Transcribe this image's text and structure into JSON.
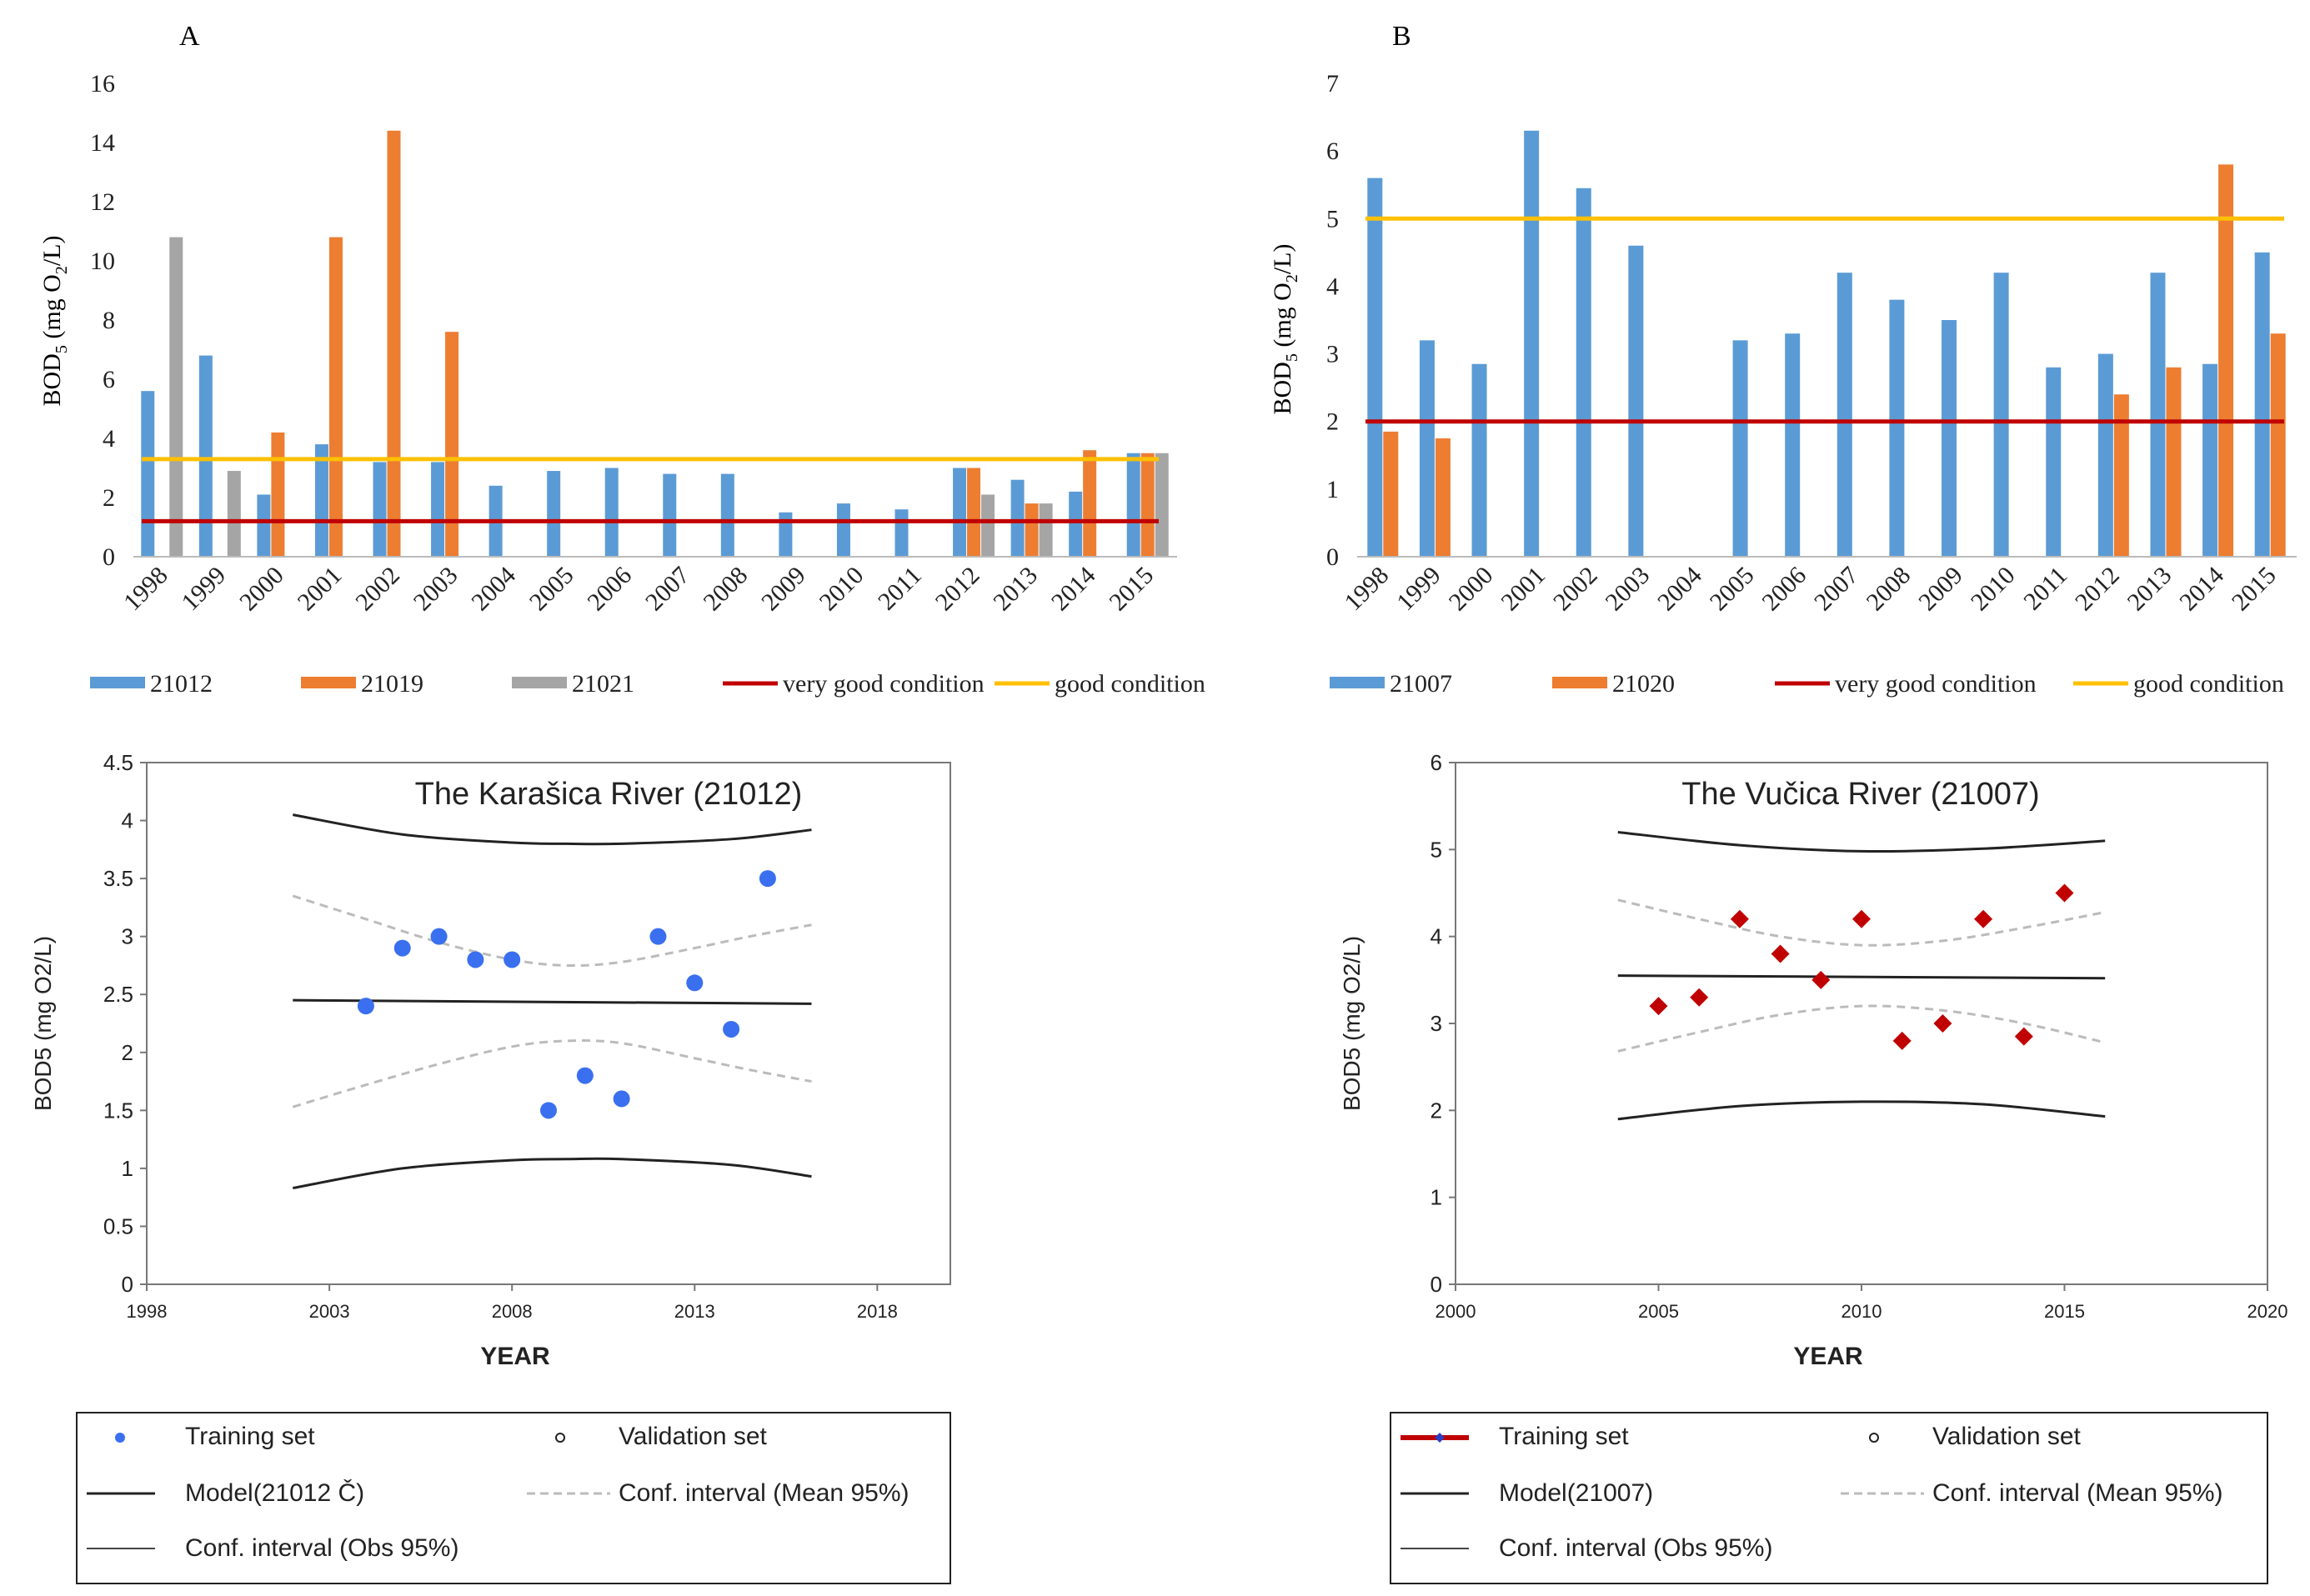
{
  "colors": {
    "blue": "#5B9BD5",
    "orange": "#ED7D31",
    "gray": "#A5A5A5",
    "red": "#C00000",
    "yellow": "#FFC000",
    "blue_dot": "#3A6FF0",
    "red_diamond": "#C00000",
    "dark": "#222222",
    "dash": "#BBBBBB"
  },
  "chart_data": [
    {
      "panel": "A",
      "type": "bar",
      "panel_label": "A",
      "ylabel": "BOD₅ (mg O₂/L)",
      "ylabel_main": "BOD",
      "ylabel_sub1": "5",
      "ylabel_mid": " (mg O",
      "ylabel_sub2": "2",
      "ylabel_end": "/L)",
      "ylim": [
        0,
        16
      ],
      "yticks": [
        0,
        2,
        4,
        6,
        8,
        10,
        12,
        14,
        16
      ],
      "yticklabels": [
        "0",
        "2",
        "4",
        "6",
        "8",
        "10",
        "12",
        "14",
        "16"
      ],
      "categories": [
        "1998",
        "1999",
        "2000",
        "2001",
        "2002",
        "2003",
        "2004",
        "2005",
        "2006",
        "2007",
        "2008",
        "2009",
        "2010",
        "2011",
        "2012",
        "2013",
        "2014",
        "2015"
      ],
      "series": [
        {
          "name": "21012",
          "color": "#5B9BD5",
          "values": [
            5.6,
            6.8,
            2.1,
            3.8,
            3.2,
            3.2,
            2.4,
            2.9,
            3.0,
            2.8,
            2.8,
            1.5,
            1.8,
            1.6,
            3.0,
            2.6,
            2.2,
            3.5
          ]
        },
        {
          "name": "21019",
          "color": "#ED7D31",
          "values": [
            null,
            null,
            4.2,
            10.8,
            14.4,
            7.6,
            null,
            null,
            null,
            null,
            null,
            null,
            null,
            null,
            3.0,
            1.8,
            3.6,
            3.5
          ]
        },
        {
          "name": "21021",
          "color": "#A5A5A5",
          "values": [
            10.8,
            2.9,
            null,
            null,
            null,
            null,
            null,
            null,
            null,
            null,
            null,
            null,
            null,
            null,
            2.1,
            1.8,
            null,
            3.5
          ]
        }
      ],
      "thresholds": [
        {
          "name": "very good condition",
          "value": 1.2,
          "color": "#C00000"
        },
        {
          "name": "good condition",
          "value": 3.3,
          "color": "#FFC000"
        }
      ],
      "legend": [
        {
          "label": "21012",
          "kind": "box",
          "color": "#5B9BD5"
        },
        {
          "label": "21019",
          "kind": "box",
          "color": "#ED7D31"
        },
        {
          "label": "21021",
          "kind": "box",
          "color": "#A5A5A5"
        },
        {
          "label": "very good condition",
          "kind": "line",
          "color": "#C00000"
        },
        {
          "label": "good condition",
          "kind": "line",
          "color": "#FFC000"
        }
      ]
    },
    {
      "panel": "B",
      "type": "bar",
      "panel_label": "B",
      "ylabel": "BOD₅ (mg O₂/L)",
      "ylabel_main": "BOD",
      "ylabel_sub1": "5",
      "ylabel_mid": " (mg O",
      "ylabel_sub2": "2",
      "ylabel_end": "/L)",
      "ylim": [
        0,
        7
      ],
      "yticks": [
        0,
        1,
        2,
        3,
        4,
        5,
        6,
        7
      ],
      "yticklabels": [
        "0",
        "1",
        "2",
        "3",
        "4",
        "5",
        "6",
        "7"
      ],
      "categories": [
        "1998",
        "1999",
        "2000",
        "2001",
        "2002",
        "2003",
        "2004",
        "2005",
        "2006",
        "2007",
        "2008",
        "2009",
        "2010",
        "2011",
        "2012",
        "2013",
        "2014",
        "2015"
      ],
      "series": [
        {
          "name": "21007",
          "color": "#5B9BD5",
          "values": [
            5.6,
            3.2,
            2.85,
            6.3,
            5.45,
            4.6,
            null,
            3.2,
            3.3,
            4.2,
            3.8,
            3.5,
            4.2,
            2.8,
            3.0,
            4.2,
            2.85,
            4.5
          ]
        },
        {
          "name": "21020",
          "color": "#ED7D31",
          "values": [
            1.85,
            1.75,
            null,
            null,
            null,
            null,
            null,
            null,
            null,
            null,
            null,
            null,
            null,
            null,
            2.4,
            2.8,
            5.8,
            3.3
          ]
        }
      ],
      "thresholds": [
        {
          "name": "very good condition",
          "value": 2.0,
          "color": "#C00000"
        },
        {
          "name": "good condition",
          "value": 5.0,
          "color": "#FFC000"
        }
      ],
      "legend": [
        {
          "label": "21007",
          "kind": "box",
          "color": "#5B9BD5"
        },
        {
          "label": "21020",
          "kind": "box",
          "color": "#ED7D31"
        },
        {
          "label": "very good condition",
          "kind": "line",
          "color": "#C00000"
        },
        {
          "label": "good condition",
          "kind": "line",
          "color": "#FFC000"
        }
      ]
    },
    {
      "panel": "C",
      "type": "scatter",
      "title": "The Karašica River (21012)",
      "xlabel": "YEAR",
      "ylabel": "BOD5 (mg O2/L)",
      "xlim": [
        1998,
        2020
      ],
      "ylim": [
        0,
        4.5
      ],
      "xticks": [
        1998,
        2003,
        2008,
        2013,
        2018
      ],
      "xticklabels": [
        "1998",
        "2003",
        "2008",
        "2013",
        "2018"
      ],
      "yticks": [
        0,
        0.5,
        1,
        1.5,
        2,
        2.5,
        3,
        3.5,
        4,
        4.5
      ],
      "yticklabels": [
        "0",
        "0.5",
        "1",
        "1.5",
        "2",
        "2.5",
        "3",
        "3.5",
        "4",
        "4.5"
      ],
      "marker": "circle",
      "marker_color": "#3A6FF0",
      "points": {
        "x": [
          2004,
          2005,
          2006,
          2007,
          2008,
          2009,
          2010,
          2011,
          2012,
          2013,
          2014,
          2015
        ],
        "y": [
          2.4,
          2.9,
          3.0,
          2.8,
          2.8,
          1.5,
          1.8,
          1.6,
          3.0,
          2.6,
          2.2,
          3.5
        ]
      },
      "model_x": [
        2002,
        2016.2
      ],
      "model_y": [
        2.45,
        2.42
      ],
      "conf_obs_upper": {
        "x": [
          2002,
          2005,
          2008,
          2009.5,
          2011,
          2014,
          2016.2
        ],
        "y": [
          4.05,
          3.88,
          3.81,
          3.8,
          3.8,
          3.84,
          3.92
        ]
      },
      "conf_obs_lower": {
        "x": [
          2002,
          2005,
          2008,
          2009.5,
          2011,
          2014,
          2016.2
        ],
        "y": [
          0.83,
          1.0,
          1.07,
          1.08,
          1.08,
          1.03,
          0.93
        ]
      },
      "conf_mean_upper": {
        "x": [
          2002,
          2004,
          2006,
          2008,
          2009.5,
          2011,
          2013,
          2014.5,
          2016.2
        ],
        "y": [
          3.35,
          3.15,
          2.95,
          2.8,
          2.75,
          2.78,
          2.9,
          3.0,
          3.1
        ]
      },
      "conf_mean_lower": {
        "x": [
          2002,
          2004,
          2006,
          2008,
          2009.5,
          2011,
          2013,
          2014.5,
          2016.2
        ],
        "y": [
          1.53,
          1.72,
          1.9,
          2.05,
          2.1,
          2.08,
          1.95,
          1.85,
          1.75
        ]
      },
      "legend": {
        "training": "Training set",
        "validation": "Validation set",
        "model": "Model(21012 Č)",
        "conf_mean": "Conf. interval (Mean 95%)",
        "conf_obs": "Conf. interval (Obs 95%)"
      }
    },
    {
      "panel": "D",
      "type": "scatter",
      "title": "The Vučica River (21007)",
      "xlabel": "YEAR",
      "ylabel": "BOD5 (mg O2/L)",
      "xlim": [
        2000,
        2020
      ],
      "ylim": [
        0,
        6
      ],
      "xticks": [
        2000,
        2005,
        2010,
        2015,
        2020
      ],
      "xticklabels": [
        "2000",
        "2005",
        "2010",
        "2015",
        "2020"
      ],
      "yticks": [
        0,
        1,
        2,
        3,
        4,
        5,
        6
      ],
      "yticklabels": [
        "0",
        "1",
        "2",
        "3",
        "4",
        "5",
        "6"
      ],
      "marker": "diamond",
      "marker_color": "#C00000",
      "points": {
        "x": [
          2005,
          2006,
          2007,
          2008,
          2009,
          2010,
          2011,
          2012,
          2013,
          2014,
          2015
        ],
        "y": [
          3.2,
          3.3,
          4.2,
          3.8,
          3.5,
          4.2,
          2.8,
          3.0,
          4.2,
          2.85,
          4.5
        ]
      },
      "model_x": [
        2004,
        2016
      ],
      "model_y": [
        3.55,
        3.52
      ],
      "conf_obs_upper": {
        "x": [
          2004,
          2007,
          2010,
          2013,
          2016
        ],
        "y": [
          5.2,
          5.05,
          4.98,
          5.01,
          5.1
        ]
      },
      "conf_obs_lower": {
        "x": [
          2004,
          2007,
          2010,
          2013,
          2016
        ],
        "y": [
          1.9,
          2.05,
          2.1,
          2.07,
          1.93
        ]
      },
      "conf_mean_upper": {
        "x": [
          2004,
          2006,
          2008,
          2010,
          2012,
          2014,
          2016
        ],
        "y": [
          4.42,
          4.2,
          4.0,
          3.9,
          3.95,
          4.1,
          4.28
        ]
      },
      "conf_mean_lower": {
        "x": [
          2004,
          2006,
          2008,
          2010,
          2012,
          2014,
          2016
        ],
        "y": [
          2.68,
          2.9,
          3.1,
          3.2,
          3.15,
          3.0,
          2.78
        ]
      },
      "legend": {
        "training": "Training set",
        "validation": "Validation set",
        "model": "Model(21007)",
        "conf_mean": "Conf. interval (Mean 95%)",
        "conf_obs": "Conf. interval (Obs 95%)"
      }
    }
  ]
}
